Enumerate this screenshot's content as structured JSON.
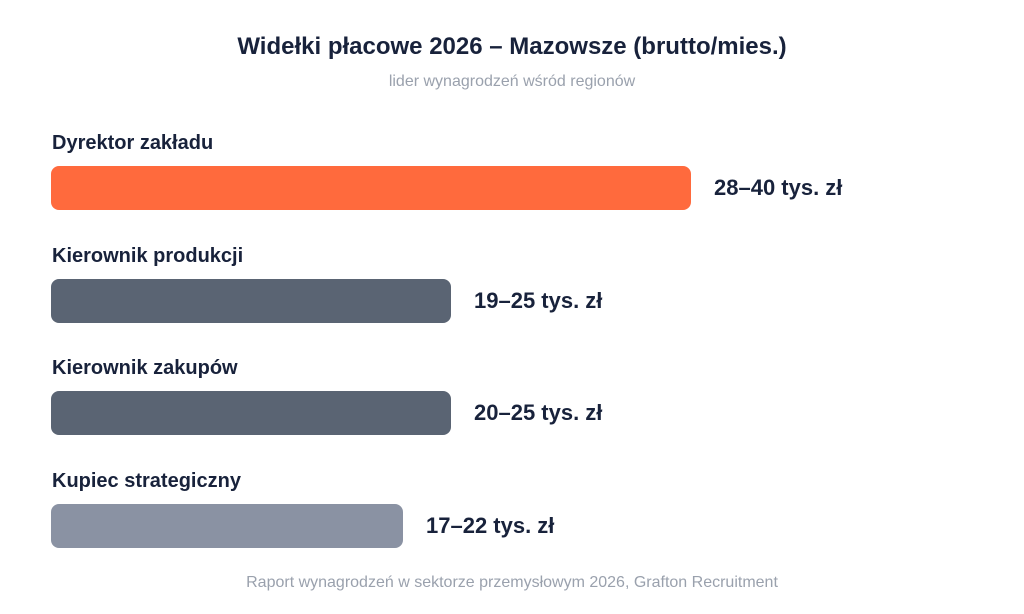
{
  "title": "Widełki płacowe 2026 – Mazowsze (brutto/mies.)",
  "subtitle": "lider wynagrodzeń wśród regionów",
  "footer": "Raport wynagrodzeń w sektorze przemysłowym 2026, Grafton Recruitment",
  "colors": {
    "highlight": "#ff6a3d",
    "dark": "#5a6473",
    "light": "#8a92a3"
  },
  "chart_data": {
    "type": "bar",
    "orientation": "horizontal",
    "title": "Widełki płacowe 2026 – Mazowsze (brutto/mies.)",
    "subtitle": "lider wynagrodzeń wśród regionów",
    "unit": "tys. zł",
    "categories": [
      "Dyrektor zakładu",
      "Kierownik produkcji",
      "Kierownik zakupów",
      "Kupiec strategiczny"
    ],
    "ranges": [
      [
        28,
        40
      ],
      [
        19,
        25
      ],
      [
        20,
        25
      ],
      [
        17,
        22
      ]
    ],
    "value_labels": [
      "28–40 tys. zł",
      "19–25 tys. zł",
      "20–25 tys. zł",
      "17–22 tys. zł"
    ],
    "bar_colors": [
      "#ff6a3d",
      "#5a6473",
      "#5a6473",
      "#8a92a3"
    ],
    "grid": false,
    "legend": "none"
  }
}
